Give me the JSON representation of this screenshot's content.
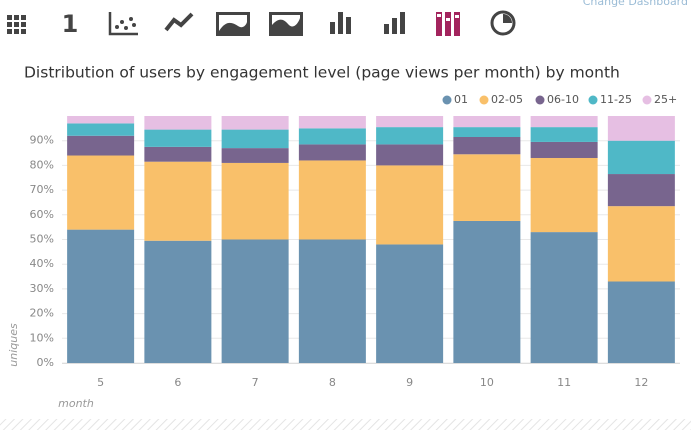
{
  "ui": {
    "link": "Change Dashboard",
    "icon_number": "1"
  },
  "chart_data": {
    "type": "stacked_bar",
    "title": "Distribution of users by engagement level (page views per month) by month",
    "x_label": "month",
    "y_label": "uniques",
    "categories": [
      "5",
      "6",
      "7",
      "8",
      "9",
      "10",
      "11",
      "12"
    ],
    "series": [
      {
        "name": "01",
        "color": "#6a92b0",
        "values": [
          54,
          49.5,
          50,
          50,
          48,
          57.5,
          53,
          33
        ]
      },
      {
        "name": "02-05",
        "color": "#f9c06a",
        "values": [
          30,
          32,
          31,
          32,
          32,
          27,
          30,
          30.5
        ]
      },
      {
        "name": "06-10",
        "color": "#78658e",
        "values": [
          8,
          6,
          6,
          6.5,
          8.5,
          7,
          6.5,
          13
        ]
      },
      {
        "name": "11-25",
        "color": "#4fb8c7",
        "values": [
          5,
          7,
          7.5,
          6.5,
          7,
          4,
          6,
          13.5
        ]
      },
      {
        "name": "25+",
        "color": "#e6bfe3",
        "values": [
          3,
          5.5,
          5.5,
          5,
          4.5,
          4.5,
          4.5,
          10
        ]
      }
    ],
    "ylim": [
      0,
      100
    ],
    "yticks": [
      {
        "value": 0,
        "label": "0%"
      },
      {
        "value": 10,
        "label": "10%"
      },
      {
        "value": 20,
        "label": "20%"
      },
      {
        "value": 30,
        "label": "30%"
      },
      {
        "value": 40,
        "label": "40%"
      },
      {
        "value": 50,
        "label": "50%"
      },
      {
        "value": 60,
        "label": "60%"
      },
      {
        "value": 70,
        "label": "70%"
      },
      {
        "value": 80,
        "label": "80%"
      },
      {
        "value": 90,
        "label": "90%"
      }
    ],
    "grid": true,
    "legend": "top-right"
  }
}
